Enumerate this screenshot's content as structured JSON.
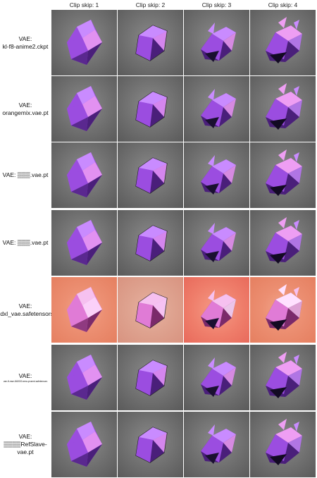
{
  "columns": [
    {
      "label": "Clip skip: 1"
    },
    {
      "label": "Clip skip: 2"
    },
    {
      "label": "Clip skip: 3"
    },
    {
      "label": "Clip skip: 4"
    }
  ],
  "rows": [
    {
      "line1": "VAE:",
      "line2": "kl-f8-anime2.ckpt",
      "bg": "gray"
    },
    {
      "line1": "VAE:",
      "line2": "orangemix.vae.pt",
      "bg": "gray"
    },
    {
      "line1": "VAE: ▒▒▒.vae.pt",
      "line2": "",
      "bg": "gray"
    },
    {
      "line1": "VAE: ▒▒▒.vae.pt",
      "line2": "",
      "bg": "gray"
    },
    {
      "line1": "VAE:",
      "line2": "sdxl_vae.safetensors",
      "bg": "orange"
    },
    {
      "line1": "VAE:",
      "line2": "vae-ft-mse-840000-ema-pruned.safetensors",
      "bg": "gray",
      "tiny": true
    },
    {
      "line1": "VAE:",
      "line2": "▒▒▒▒RefSlave-vae.pt",
      "bg": "gray"
    }
  ],
  "colors": {
    "crystal_light": "#c98bff",
    "crystal_mid": "#9b4de0",
    "crystal_dark": "#4a1f7a",
    "crystal_pink": "#ee9ef3"
  }
}
